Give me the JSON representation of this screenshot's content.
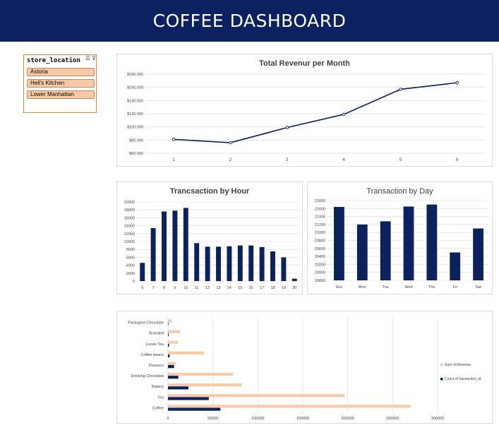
{
  "header": {
    "title": "COFFEE DASHBOARD"
  },
  "slicer": {
    "title": "store_location",
    "items": [
      "Astoria",
      "Hell's Kitchen",
      "Lower Manhattan"
    ]
  },
  "colors": {
    "navy": "#0b2160",
    "peach": "#f8cba6",
    "orange_border": "#e08a2e",
    "grid": "#d9d9d9"
  },
  "chart_data": [
    {
      "id": "revenue_month",
      "type": "line",
      "title": "Total Revenur per Month",
      "categories": [
        "1",
        "2",
        "3",
        "4",
        "5",
        "6"
      ],
      "values": [
        81000,
        76000,
        99000,
        119000,
        157000,
        167000
      ],
      "yticks": [
        "$60,000",
        "$80,000",
        "$100,000",
        "$120,000",
        "$140,000",
        "$160,000",
        "$180,000"
      ],
      "ylim": [
        60000,
        180000
      ],
      "grid": true
    },
    {
      "id": "transactions_hour",
      "type": "bar",
      "title": "Trancsaction by Hour",
      "categories": [
        "6",
        "7",
        "8",
        "9",
        "10",
        "11",
        "12",
        "13",
        "14",
        "15",
        "16",
        "17",
        "18",
        "19",
        "20"
      ],
      "values": [
        4600,
        13400,
        17600,
        17800,
        18500,
        9600,
        8700,
        8700,
        8800,
        9000,
        9000,
        8600,
        7500,
        6000,
        600
      ],
      "yticks": [
        "0",
        "2000",
        "4000",
        "6000",
        "8000",
        "10000",
        "12000",
        "14000",
        "16000",
        "18000",
        "20000"
      ],
      "ylim": [
        0,
        20000
      ],
      "grid": true
    },
    {
      "id": "transactions_day",
      "type": "bar",
      "title": "Transaction by Day",
      "categories": [
        "Sun",
        "Mon",
        "Tue",
        "Wed",
        "Thu",
        "Fri",
        "Sat"
      ],
      "values": [
        21640,
        21200,
        21280,
        21650,
        21700,
        20500,
        21100
      ],
      "yticks": [
        "19800",
        "20000",
        "20200",
        "20400",
        "20600",
        "20800",
        "21000",
        "21200",
        "21400",
        "21600",
        "21800"
      ],
      "ylim": [
        19800,
        21800
      ],
      "grid": true
    },
    {
      "id": "product_category",
      "type": "bar",
      "orientation": "horizontal",
      "title": "",
      "categories": [
        "Coffee",
        "Tea",
        "Bakery",
        "Drinking Chocolate",
        "Flavours",
        "Coffee beans",
        "Loose Tea",
        "Branded",
        "Packaged Chocolate"
      ],
      "series": [
        {
          "name": "Sum of Revenue",
          "values": [
            269900,
            196400,
            82300,
            72400,
            8400,
            40100,
            11200,
            13600,
            4400
          ]
        },
        {
          "name": "Count of transaction_id",
          "values": [
            58400,
            45400,
            22800,
            11500,
            6800,
            1800,
            1200,
            750,
            490
          ]
        }
      ],
      "xticks": [
        "0",
        "50000",
        "100000",
        "150000",
        "200000",
        "250000",
        "300000"
      ],
      "xlim": [
        0,
        300000
      ],
      "legend": "right",
      "grid": true
    }
  ]
}
